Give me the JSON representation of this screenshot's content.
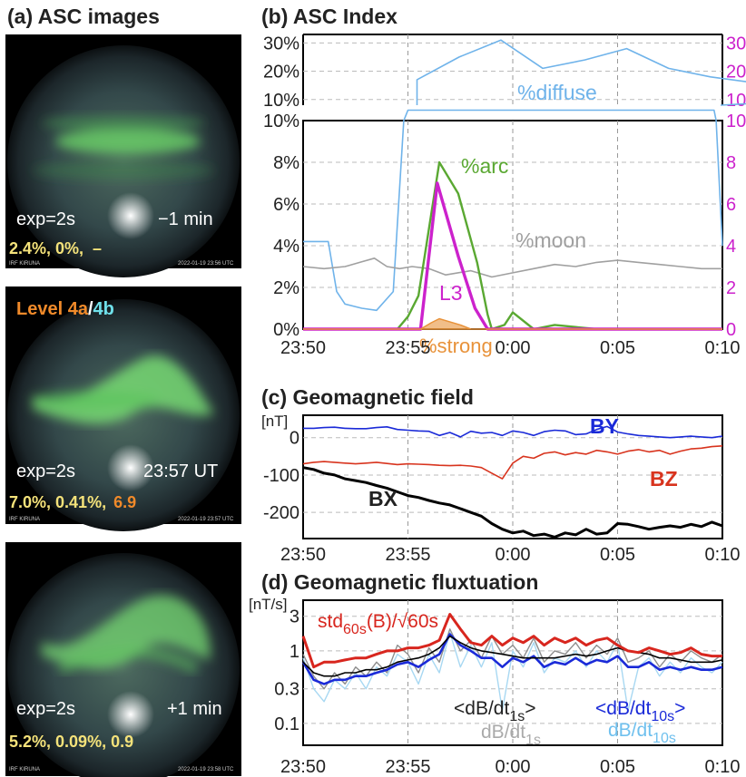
{
  "titles": {
    "a": "(a) ASC images",
    "b": "(b) ASC Index",
    "c": "(c) Geomagnetic field",
    "d": "(d) Geomagnetic fluxtuation"
  },
  "colors": {
    "diffuse": "#6fb3ea",
    "arc": "#5aa832",
    "moon": "#a0a0a0",
    "L3": "#cc22cc",
    "strong": "#e8923a",
    "BX": "#000000",
    "BY": "#1a2ad8",
    "BZ": "#d8341e",
    "std": "#d8261e",
    "dBdt1": "#8e8e8e",
    "dBdt10": "#1a2ad8",
    "dBdt1_light": "#a8d8f2"
  },
  "asc_images": [
    {
      "exposure": "exp=2s",
      "time_label": "−1 min",
      "header_label": null,
      "stats": [
        "2.4%, 0%,",
        "–"
      ],
      "stats_colors": [
        "#f4e27a",
        "#f4e27a"
      ],
      "stamp": "2022-01-19 23:56 UTC",
      "site": "IRF KIRUNA"
    },
    {
      "exposure": "exp=2s",
      "time_label": "23:57 UT",
      "header_label": [
        "Level 4a",
        "/",
        "4b"
      ],
      "stats": [
        "7.0%, 0.41%,",
        "6.9"
      ],
      "stats_colors": [
        "#f4e27a",
        "#f08a2a"
      ],
      "stamp": "2022-01-19 23:57 UTC",
      "site": "IRF KIRUNA"
    },
    {
      "exposure": "exp=2s",
      "time_label": "+1 min",
      "header_label": null,
      "stats": [
        "5.2%, 0.09%, 0.9",
        ""
      ],
      "stats_colors": [
        "#f4e27a",
        "#f4e27a"
      ],
      "stamp": "2022-01-19 23:58 UTC",
      "site": "IRF KIRUNA"
    }
  ],
  "x_ticks": [
    "23:50",
    "23:55",
    "0:00",
    "0:05",
    "0:10"
  ],
  "chart_data": [
    {
      "id": "b-top",
      "type": "line",
      "yticks_left": [
        "30%",
        "20%",
        "10%"
      ],
      "yticks_right": [
        "30",
        "20",
        "10"
      ],
      "ylim": [
        8,
        33
      ],
      "series": [
        {
          "name": "%diffuse",
          "x": [
            0,
            2,
            4,
            6,
            8,
            10,
            12,
            14,
            16,
            18,
            19.4
          ],
          "values": [
            17,
            25,
            31,
            21,
            24,
            28,
            21,
            18,
            16,
            11,
            10
          ]
        }
      ]
    },
    {
      "id": "b-main",
      "type": "line",
      "xlim": [
        -10,
        10
      ],
      "ylim": [
        0,
        10
      ],
      "yticks_left": [
        "0%",
        "2%",
        "4%",
        "6%",
        "8%",
        "10%"
      ],
      "yticks_right": [
        "0",
        "2",
        "4",
        "6",
        "8",
        "10"
      ],
      "series": [
        {
          "name": "%diffuse",
          "x": [
            -10,
            -8.8,
            -8.4,
            -8.0,
            -7.2,
            -6.5,
            -5.7,
            -5.2,
            -5.0,
            -4.9,
            9.6,
            9.7,
            10
          ],
          "values": [
            4.2,
            4.2,
            1.8,
            1.2,
            1.0,
            0.9,
            1.8,
            10.0,
            10.5,
            10.5,
            10.5,
            10.0,
            4.0
          ]
        },
        {
          "name": "%moon",
          "x": [
            -10,
            -9,
            -8,
            -7.3,
            -6.6,
            -6,
            -5.4,
            -4.8,
            -4,
            -3.2,
            -2,
            -1,
            0,
            1,
            2,
            3,
            4,
            5,
            6,
            7,
            8,
            9,
            10
          ],
          "values": [
            3.0,
            2.9,
            3.0,
            3.2,
            3.4,
            3.0,
            2.9,
            3.0,
            2.9,
            2.6,
            2.8,
            2.5,
            2.7,
            2.9,
            3.1,
            3.0,
            3.2,
            3.3,
            3.2,
            3.1,
            3.0,
            2.9,
            2.9
          ]
        },
        {
          "name": "%arc",
          "x": [
            -10,
            -5.5,
            -5.0,
            -4.5,
            -3.5,
            -2.6,
            -1.7,
            -1.2,
            -1.0,
            -0.4,
            0,
            1,
            2,
            3,
            4,
            5,
            10
          ],
          "values": [
            0,
            0,
            0.6,
            1.6,
            8.0,
            6.5,
            3.2,
            0.7,
            0.0,
            0.2,
            0.8,
            0.0,
            0.2,
            0.1,
            0.0,
            0.0,
            0.0
          ]
        },
        {
          "name": "L3",
          "x": [
            -10,
            -4.4,
            -3.6,
            -2.6,
            -1.8,
            -1.2,
            10
          ],
          "values": [
            0,
            0,
            7.0,
            3.5,
            1.0,
            0,
            0
          ]
        },
        {
          "name": "%strong",
          "x": [
            -10,
            -4.4,
            -3.9,
            -3.5,
            -2.5,
            -2.0,
            10
          ],
          "values": [
            0,
            0,
            0.3,
            0.5,
            0.2,
            0,
            0
          ]
        }
      ]
    },
    {
      "id": "c",
      "type": "line",
      "ylabel": "[nT]",
      "ylim": [
        -270,
        60
      ],
      "yticks": [
        "0",
        "-100",
        "-200"
      ],
      "series": [
        {
          "name": "BY",
          "values": [
            25,
            25,
            27,
            28,
            25,
            24,
            24,
            27,
            29,
            22,
            20,
            18,
            17,
            6,
            14,
            2,
            17,
            12,
            14,
            6,
            18,
            14,
            6,
            16,
            20,
            18,
            8,
            10,
            22,
            30,
            15,
            10,
            6,
            4,
            2,
            0,
            2,
            4,
            2,
            0,
            4
          ]
        },
        {
          "name": "BZ",
          "values": [
            -70,
            -66,
            -64,
            -66,
            -68,
            -70,
            -68,
            -66,
            -69,
            -72,
            -70,
            -71,
            -72,
            -74,
            -75,
            -74,
            -76,
            -80,
            -95,
            -110,
            -68,
            -50,
            -55,
            -42,
            -38,
            -46,
            -40,
            -44,
            -34,
            -38,
            -44,
            -36,
            -32,
            -38,
            -34,
            -44,
            -36,
            -30,
            -28,
            -24,
            -22
          ]
        },
        {
          "name": "BX",
          "values": [
            -80,
            -85,
            -95,
            -100,
            -110,
            -115,
            -120,
            -128,
            -135,
            -145,
            -155,
            -160,
            -168,
            -175,
            -180,
            -190,
            -200,
            -210,
            -230,
            -245,
            -255,
            -250,
            -262,
            -258,
            -266,
            -255,
            -260,
            -245,
            -258,
            -255,
            -230,
            -232,
            -238,
            -245,
            -240,
            -236,
            -240,
            -232,
            -238,
            -226,
            -236
          ]
        }
      ]
    },
    {
      "id": "d",
      "type": "line",
      "ylabel": "[nT/s]",
      "yscale": "log",
      "ylim": [
        0.05,
        5
      ],
      "yticks": [
        "3",
        "1",
        "0.3",
        "0.1"
      ],
      "series": [
        {
          "name": "dB/dt1s",
          "values": [
            0.9,
            0.45,
            0.3,
            0.5,
            0.35,
            0.6,
            0.45,
            0.7,
            0.5,
            1.2,
            0.9,
            0.5,
            1.1,
            0.7,
            2.0,
            1.0,
            1.4,
            0.8,
            1.6,
            0.9,
            1.2,
            0.8,
            1.5,
            0.7,
            1.0,
            0.9,
            1.3,
            0.8,
            1.2,
            0.9,
            1.5,
            0.7,
            0.8,
            1.0,
            0.6,
            0.9,
            0.7,
            1.0,
            0.8,
            0.7,
            0.9
          ]
        },
        {
          "name": "dB/dt1s_light",
          "values": [
            0.8,
            0.3,
            0.2,
            0.4,
            0.3,
            0.5,
            0.3,
            0.6,
            0.45,
            0.9,
            0.7,
            0.35,
            0.9,
            0.5,
            1.8,
            0.6,
            1.2,
            0.6,
            1.3,
            0.15,
            1.0,
            0.6,
            1.3,
            0.5,
            0.8,
            0.7,
            1.0,
            0.6,
            1.0,
            0.7,
            1.3,
            0.15,
            0.6,
            0.8,
            0.45,
            0.7,
            0.5,
            0.8,
            0.6,
            0.5,
            0.7
          ]
        },
        {
          "name": "<dB/dt1s>",
          "values": [
            0.7,
            0.5,
            0.45,
            0.45,
            0.5,
            0.5,
            0.55,
            0.55,
            0.6,
            0.7,
            0.75,
            0.8,
            0.9,
            1.1,
            1.6,
            1.3,
            1.1,
            1.0,
            0.95,
            0.9,
            0.85,
            0.8,
            0.8,
            0.8,
            0.8,
            0.85,
            0.9,
            0.85,
            0.9,
            1.0,
            1.1,
            1.0,
            0.95,
            0.9,
            0.8,
            0.8,
            0.75,
            0.7,
            0.7,
            0.7,
            0.75
          ]
        },
        {
          "name": "<dB/dt10s>",
          "values": [
            0.7,
            0.4,
            0.35,
            0.4,
            0.4,
            0.45,
            0.45,
            0.5,
            0.55,
            0.65,
            0.7,
            0.6,
            0.75,
            0.9,
            1.7,
            1.2,
            1.0,
            0.8,
            0.8,
            0.6,
            0.8,
            0.7,
            0.85,
            0.6,
            0.7,
            0.65,
            0.8,
            0.65,
            0.75,
            0.7,
            0.85,
            0.6,
            0.6,
            0.7,
            0.55,
            0.6,
            0.55,
            0.6,
            0.55,
            0.55,
            0.6
          ]
        },
        {
          "name": "std60s(B)/√60s",
          "values": [
            1.6,
            0.6,
            0.7,
            0.7,
            0.75,
            0.8,
            0.8,
            0.9,
            1.0,
            1.0,
            1.1,
            1.1,
            1.2,
            1.4,
            3.2,
            2.0,
            1.3,
            1.2,
            1.6,
            1.2,
            1.5,
            1.3,
            1.6,
            1.2,
            1.5,
            1.3,
            1.5,
            1.2,
            1.4,
            1.5,
            1.2,
            1.0,
            0.95,
            1.1,
            1.0,
            0.9,
            0.95,
            1.1,
            0.9,
            0.85,
            0.85
          ]
        }
      ]
    }
  ],
  "labels": {
    "b": {
      "diffuse": "%diffuse",
      "arc": "%arc",
      "moon": "%moon",
      "L3": "L3",
      "strong": "%strong"
    },
    "c": {
      "nT": "[nT]",
      "BX": "BX",
      "BY": "BY",
      "BZ": "BZ"
    },
    "d": {
      "nTs": "[nT/s]",
      "std_main": "std",
      "std_sub": "60s",
      "std_tail": "(B)/√60s",
      "avg1_main": "<dB/dt",
      "avg1_sub": "1s",
      "avg1_tail": ">",
      "raw1_main": "dB/dt",
      "raw1_sub": "1s",
      "avg10_main": "<dB/dt",
      "avg10_sub": "10s",
      "avg10_tail": ">",
      "raw10_main": "dB/dt",
      "raw10_sub": "10s"
    }
  }
}
